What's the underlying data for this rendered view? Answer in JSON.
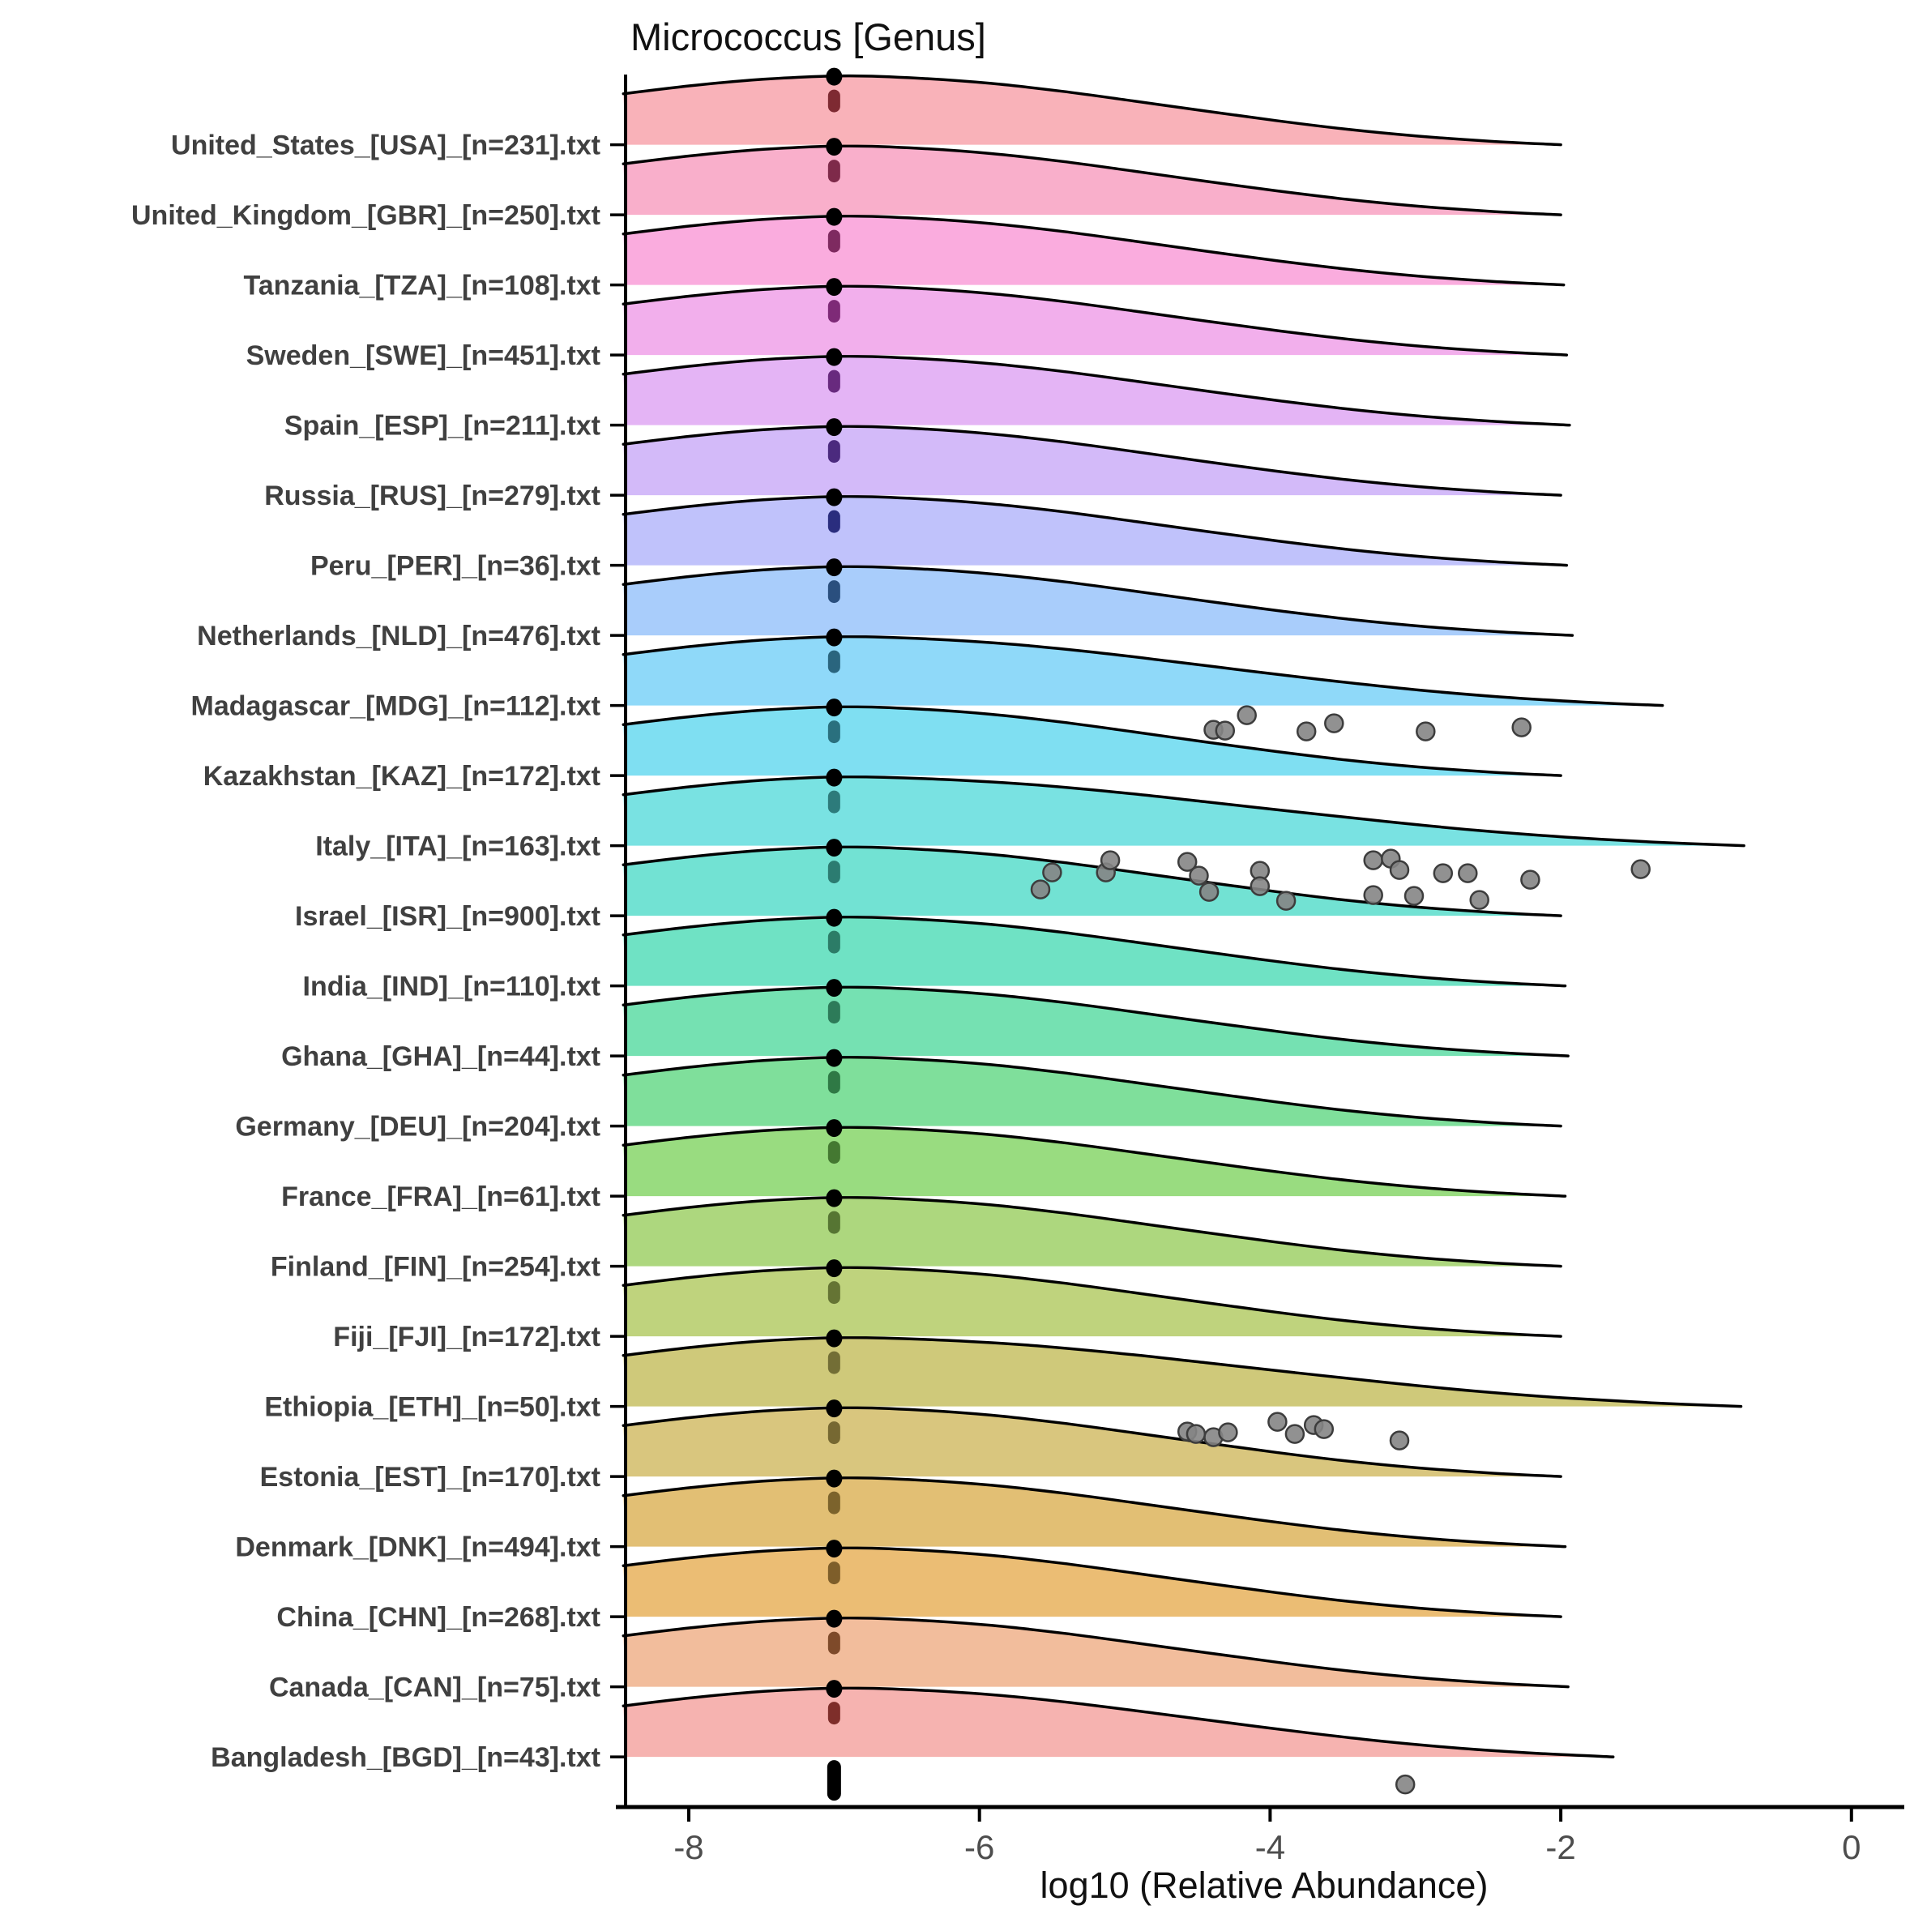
{
  "title": "Micrococcus [Genus]",
  "chart_data": {
    "type": "ridgeline",
    "title": "Micrococcus [Genus]",
    "xlabel": "log10 (Relative Abundance)",
    "x_ticks": [
      -8,
      -6,
      -4,
      -2,
      0
    ],
    "x_tick_labels": [
      "-8",
      "-6",
      "-4",
      "-2",
      "0"
    ],
    "x_range": [
      -8.45,
      0.42
    ],
    "grid": "off",
    "legend": "none",
    "median_line_log10": -7,
    "rows": [
      {
        "label": "United_States_[USA]_[n=231].txt",
        "country": "United States",
        "iso3": "USA",
        "n": 231,
        "fill": "#F9B2B9",
        "tail_end": -2.0,
        "points": []
      },
      {
        "label": "United_Kingdom_[GBR]_[n=250].txt",
        "country": "United Kingdom",
        "iso3": "GBR",
        "n": 250,
        "fill": "#F9AFCB",
        "tail_end": -2.0,
        "points": []
      },
      {
        "label": "Tanzania_[TZA]_[n=108].txt",
        "country": "Tanzania",
        "iso3": "TZA",
        "n": 108,
        "fill": "#FAACDE",
        "tail_end": -1.98,
        "points": []
      },
      {
        "label": "Sweden_[SWE]_[n=451].txt",
        "country": "Sweden",
        "iso3": "SWE",
        "n": 451,
        "fill": "#F2AFEC",
        "tail_end": -1.96,
        "points": []
      },
      {
        "label": "Spain_[ESP]_[n=211].txt",
        "country": "Spain",
        "iso3": "ESP",
        "n": 211,
        "fill": "#E4B4F5",
        "tail_end": -1.94,
        "points": []
      },
      {
        "label": "Russia_[RUS]_[n=279].txt",
        "country": "Russia",
        "iso3": "RUS",
        "n": 279,
        "fill": "#D3BAF9",
        "tail_end": -2.0,
        "points": []
      },
      {
        "label": "Peru_[PER]_[n=36].txt",
        "country": "Peru",
        "iso3": "PER",
        "n": 36,
        "fill": "#C0C2FB",
        "tail_end": -1.96,
        "points": []
      },
      {
        "label": "Netherlands_[NLD]_[n=476].txt",
        "country": "Netherlands",
        "iso3": "NLD",
        "n": 476,
        "fill": "#A9CDFB",
        "tail_end": -1.92,
        "points": []
      },
      {
        "label": "Madagascar_[MDG]_[n=112].txt",
        "country": "Madagascar",
        "iso3": "MDG",
        "n": 112,
        "fill": "#8FD9F9",
        "tail_end": -1.3,
        "points": [
          [
            -4.39,
            30
          ],
          [
            -4.31,
            31
          ],
          [
            -4.16,
            12
          ],
          [
            -3.75,
            32
          ],
          [
            -3.56,
            22
          ],
          [
            -2.93,
            32
          ],
          [
            -2.27,
            27
          ]
        ]
      },
      {
        "label": "Kazakhstan_[KAZ]_[n=172].txt",
        "country": "Kazakhstan",
        "iso3": "KAZ",
        "n": 172,
        "fill": "#7FDFF2",
        "tail_end": -2.0,
        "points": []
      },
      {
        "label": "Italy_[ITA]_[n=163].txt",
        "country": "Italy",
        "iso3": "ITA",
        "n": 163,
        "fill": "#79E2E2",
        "tail_end": -0.74,
        "points": [
          [
            -5.58,
            54
          ],
          [
            -5.5,
            33
          ],
          [
            -5.13,
            33
          ],
          [
            -5.1,
            18
          ],
          [
            -4.57,
            20
          ],
          [
            -4.49,
            37
          ],
          [
            -4.42,
            57
          ],
          [
            -4.07,
            31
          ],
          [
            -4.07,
            50
          ],
          [
            -3.89,
            68
          ],
          [
            -3.29,
            18
          ],
          [
            -3.29,
            61
          ],
          [
            -3.17,
            16
          ],
          [
            -3.11,
            30
          ],
          [
            -3.01,
            62
          ],
          [
            -2.81,
            34
          ],
          [
            -2.64,
            34
          ],
          [
            -2.56,
            67
          ],
          [
            -2.21,
            42
          ],
          [
            -1.45,
            29
          ]
        ]
      },
      {
        "label": "Israel_[ISR]_[n=900].txt",
        "country": "Israel",
        "iso3": "ISR",
        "n": 900,
        "fill": "#72E2D3",
        "tail_end": -2.0,
        "points": []
      },
      {
        "label": "India_[IND]_[n=110].txt",
        "country": "India",
        "iso3": "IND",
        "n": 110,
        "fill": "#6FE2C4",
        "tail_end": -1.97,
        "points": []
      },
      {
        "label": "Ghana_[GHA]_[n=44].txt",
        "country": "Ghana",
        "iso3": "GHA",
        "n": 44,
        "fill": "#75E1B2",
        "tail_end": -1.95,
        "points": []
      },
      {
        "label": "Germany_[DEU]_[n=204].txt",
        "country": "Germany",
        "iso3": "DEU",
        "n": 204,
        "fill": "#7FDF9B",
        "tail_end": -2.0,
        "points": []
      },
      {
        "label": "France_[FRA]_[n=61].txt",
        "country": "France",
        "iso3": "FRA",
        "n": 61,
        "fill": "#99DC80",
        "tail_end": -1.97,
        "points": []
      },
      {
        "label": "Finland_[FIN]_[n=254].txt",
        "country": "Finland",
        "iso3": "FIN",
        "n": 254,
        "fill": "#ADD77E",
        "tail_end": -2.0,
        "points": []
      },
      {
        "label": "Fiji_[FJI]_[n=172].txt",
        "country": "Fiji",
        "iso3": "FJI",
        "n": 172,
        "fill": "#BFD37D",
        "tail_end": -2.0,
        "points": []
      },
      {
        "label": "Ethiopia_[ETH]_[n=50].txt",
        "country": "Ethiopia",
        "iso3": "ETH",
        "n": 50,
        "fill": "#CFC97A",
        "tail_end": -0.76,
        "points": [
          [
            -4.57,
            31
          ],
          [
            -4.51,
            34
          ],
          [
            -4.39,
            38
          ],
          [
            -4.29,
            32
          ],
          [
            -3.95,
            19
          ],
          [
            -3.83,
            34
          ],
          [
            -3.7,
            23
          ],
          [
            -3.63,
            28
          ],
          [
            -3.11,
            42
          ]
        ]
      },
      {
        "label": "Estonia_[EST]_[n=170].txt",
        "country": "Estonia",
        "iso3": "EST",
        "n": 170,
        "fill": "#D9C67E",
        "tail_end": -2.0,
        "points": []
      },
      {
        "label": "Denmark_[DNK]_[n=494].txt",
        "country": "Denmark",
        "iso3": "DNK",
        "n": 494,
        "fill": "#E2BF74",
        "tail_end": -1.97,
        "points": []
      },
      {
        "label": "China_[CHN]_[n=268].txt",
        "country": "China",
        "iso3": "CHN",
        "n": 268,
        "fill": "#EBBD74",
        "tail_end": -2.0,
        "points": []
      },
      {
        "label": "Canada_[CAN]_[n=75].txt",
        "country": "Canada",
        "iso3": "CAN",
        "n": 75,
        "fill": "#F2BD9C",
        "tail_end": -1.95,
        "points": []
      },
      {
        "label": "Bangladesh_[BGD]_[n=43].txt",
        "country": "Bangladesh",
        "iso3": "BGD",
        "n": 43,
        "fill": "#F6B3B0",
        "tail_end": -1.64,
        "points": [
          [
            -3.07,
            34
          ]
        ]
      }
    ]
  },
  "style": {
    "background": "#FFFFFF",
    "ridge_stroke": "#000000",
    "axis_color": "#000000",
    "label_color": "#404040",
    "tick_color": "#4d4d4d",
    "title_color": "#111111",
    "point_fill": "#858585",
    "point_stroke": "#3d3d3d",
    "median_dot_color": "#000000",
    "bottom_row_point_cluster_color": "#000000"
  }
}
